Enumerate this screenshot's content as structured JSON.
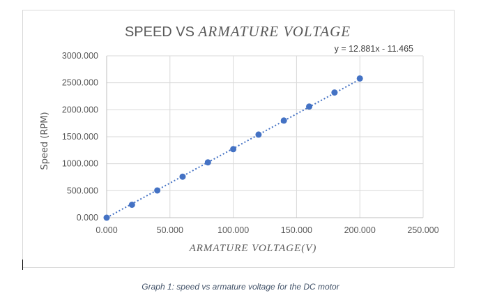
{
  "chart_data": {
    "type": "scatter",
    "title_prefix": "SPEED VS ",
    "title_italic": "ARMATURE VOLTAGE",
    "xlabel": "ARMATURE VOLTAGE(V)",
    "ylabel": "Speed (RPM)",
    "xlim": [
      0,
      250
    ],
    "ylim": [
      0,
      3000
    ],
    "x_ticks": [
      "0.000",
      "50.000",
      "100.000",
      "150.000",
      "200.000",
      "250.000"
    ],
    "y_ticks": [
      "0.000",
      "500.000",
      "1000.000",
      "1500.000",
      "2000.000",
      "2500.000",
      "3000.000"
    ],
    "x_tick_values": [
      0,
      50,
      100,
      150,
      200,
      250
    ],
    "y_tick_values": [
      0,
      500,
      1000,
      1500,
      2000,
      2500,
      3000
    ],
    "points": [
      {
        "x": 0,
        "y": 0
      },
      {
        "x": 20,
        "y": 240
      },
      {
        "x": 40,
        "y": 505
      },
      {
        "x": 60,
        "y": 760
      },
      {
        "x": 80,
        "y": 1025
      },
      {
        "x": 100,
        "y": 1270
      },
      {
        "x": 120,
        "y": 1540
      },
      {
        "x": 140,
        "y": 1800
      },
      {
        "x": 160,
        "y": 2060
      },
      {
        "x": 180,
        "y": 2320
      },
      {
        "x": 200,
        "y": 2580
      }
    ],
    "trendline": {
      "slope": 12.881,
      "intercept": -11.465,
      "x_range": [
        0,
        200
      ],
      "style": "dotted"
    },
    "equation": "y = 12.881x - 11.465",
    "grid": true,
    "legend": "none",
    "colors": {
      "marker": "#4472c4",
      "trendline": "#4472c4",
      "grid": "#d9d9d9",
      "text": "#595959"
    }
  },
  "caption": "Graph 1: speed vs armature voltage for the DC motor"
}
